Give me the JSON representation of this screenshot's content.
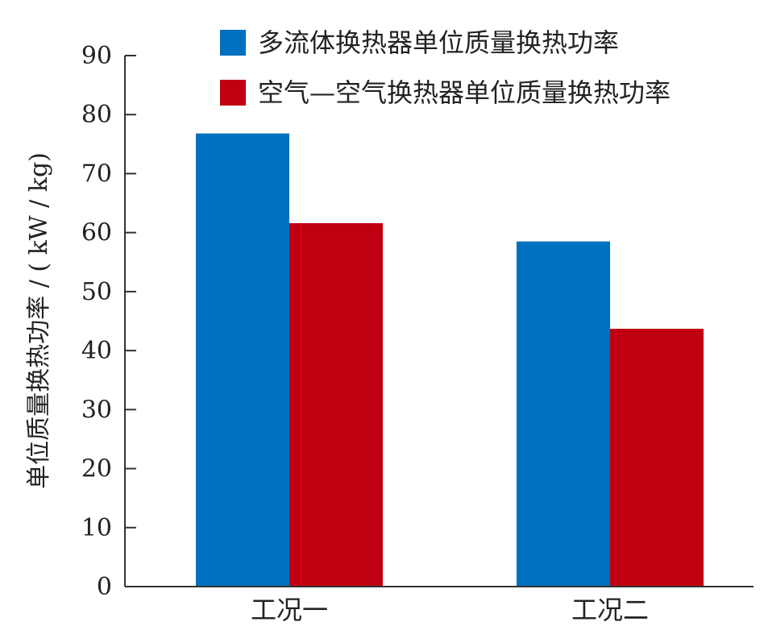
{
  "chart_data": {
    "type": "bar",
    "categories": [
      "工况一",
      "工况二"
    ],
    "series": [
      {
        "name": "多流体换热器单位质量换热功率",
        "values": [
          76.8,
          58.5
        ],
        "color": "#0070c0"
      },
      {
        "name": "空气—空气换热器单位质量换热功率",
        "values": [
          61.6,
          43.7
        ],
        "color": "#c00010"
      }
    ],
    "ylabel": "单位质量换热功率 / ( kW / kg)",
    "xlabel": "",
    "title": "",
    "ylim": [
      0,
      90
    ],
    "yticks": [
      0,
      10,
      20,
      30,
      40,
      50,
      60,
      70,
      80,
      90
    ],
    "grid": false,
    "legend": "top-right"
  }
}
